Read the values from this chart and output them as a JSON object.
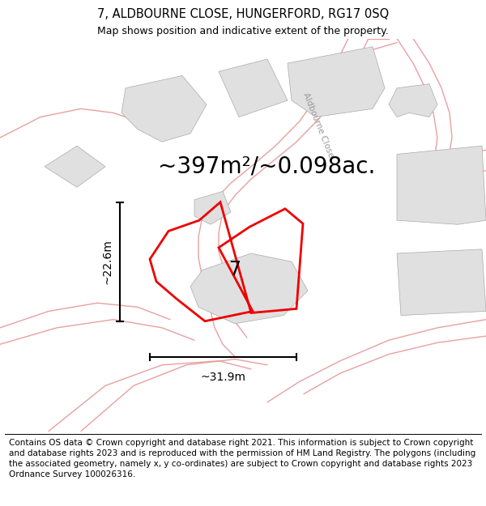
{
  "title_line1": "7, ALDBOURNE CLOSE, HUNGERFORD, RG17 0SQ",
  "title_line2": "Map shows position and indicative extent of the property.",
  "area_text": "~397m²/~0.098ac.",
  "label_number": "7",
  "dim_vertical": "~22.6m",
  "dim_horizontal": "~31.9m",
  "footer_text": "Contains OS data © Crown copyright and database right 2021. This information is subject to Crown copyright and database rights 2023 and is reproduced with the permission of HM Land Registry. The polygons (including the associated geometry, namely x, y co-ordinates) are subject to Crown copyright and database rights 2023 Ordnance Survey 100026316.",
  "bg_color": "#ffffff",
  "map_bg": "#f7f6f4",
  "plot_color": "#ee0000",
  "building_fill": "#e0e0e0",
  "building_edge": "#aaaaaa",
  "road_fill": "#f5c0c0",
  "road_edge": "#e8a0a0",
  "street_label": "Aldbourne Close",
  "title_fontsize": 10.5,
  "subtitle_fontsize": 9,
  "area_fontsize": 20,
  "label_fontsize": 17,
  "dim_fontsize": 10,
  "footer_fontsize": 7.5
}
